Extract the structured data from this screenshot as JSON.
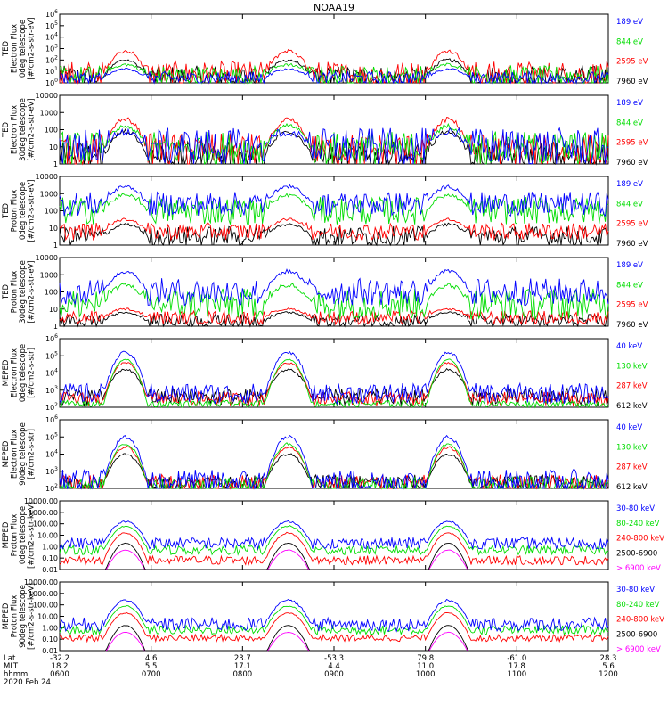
{
  "chart_data": {
    "type": "line",
    "title": "NOAA19",
    "date_label": "2020 Feb 24",
    "footer_axis": {
      "row_labels": [
        "Lat",
        "MLT",
        "hhmm"
      ],
      "columns": [
        {
          "lat": "-32.2",
          "mlt": "18.2",
          "hhmm": "0600"
        },
        {
          "lat": "4.6",
          "mlt": "5.5",
          "hhmm": "0700"
        },
        {
          "lat": "23.7",
          "mlt": "17.1",
          "hhmm": "0800"
        },
        {
          "lat": "-53.3",
          "mlt": "4.4",
          "hhmm": "0900"
        },
        {
          "lat": "79.8",
          "mlt": "11.0",
          "hhmm": "1000"
        },
        {
          "lat": "-61.0",
          "mlt": "17.8",
          "hhmm": "1100"
        },
        {
          "lat": "28.3",
          "mlt": "5.6",
          "hhmm": "1200"
        }
      ]
    },
    "x_range_hours": [
      6,
      12
    ],
    "pass_profiles": [
      {
        "key": "a",
        "center": 6.72,
        "width": 0.15
      },
      {
        "key": "b",
        "center": 8.5,
        "width": 0.16
      },
      {
        "key": "c",
        "center": 10.25,
        "width": 0.15
      }
    ],
    "panels": [
      {
        "ylabel": [
          "TED",
          "Electron Flux",
          "0deg telescope",
          "[#/cm2-s-str-eV]"
        ],
        "scale": "log",
        "ymin": 1,
        "ymax": 1000000,
        "ticks": [
          "10^6",
          "10^5",
          "10^4",
          "10^3",
          "10^2",
          "10^1",
          "10^0"
        ],
        "series": [
          {
            "name": "7960 eV",
            "color": "#000000",
            "peak": 2.0,
            "base": 0.5,
            "noise": 1.0
          },
          {
            "name": "2595 eV",
            "color": "#ff0000",
            "peak": 2.8,
            "base": 0.7,
            "noise": 1.2
          },
          {
            "name": "844 eV",
            "color": "#00dd00",
            "peak": 1.6,
            "base": 0.6,
            "noise": 0.9
          },
          {
            "name": "189 eV",
            "color": "#0000ff",
            "peak": 1.2,
            "base": 0.4,
            "noise": 0.6
          }
        ]
      },
      {
        "ylabel": [
          "TED",
          "Electron Flux",
          "30deg telescope",
          "[#/cm2-s-str-eV]"
        ],
        "scale": "log",
        "ymin": 1,
        "ymax": 10000,
        "ticks": [
          "10000",
          "1000",
          "100",
          "10",
          "1"
        ],
        "series": [
          {
            "name": "7960 eV",
            "color": "#000000",
            "peak": 1.9,
            "base": 0.4,
            "noise": 0.9
          },
          {
            "name": "2595 eV",
            "color": "#ff0000",
            "peak": 2.6,
            "base": 0.8,
            "noise": 1.0
          },
          {
            "name": "844 eV",
            "color": "#00dd00",
            "peak": 2.2,
            "base": 0.9,
            "noise": 1.0
          },
          {
            "name": "189 eV",
            "color": "#0000ff",
            "peak": 1.8,
            "base": 1.0,
            "noise": 1.1
          }
        ]
      },
      {
        "ylabel": [
          "TED",
          "Proton Flux",
          "0deg telescope",
          "[#/cm2-s-str-eV]"
        ],
        "scale": "log",
        "ymin": 1,
        "ymax": 10000,
        "ticks": [
          "10000",
          "1000",
          "100",
          "10",
          "1"
        ],
        "series": [
          {
            "name": "7960 eV",
            "color": "#000000",
            "peak": 1.2,
            "base": 0.5,
            "noise": 0.6
          },
          {
            "name": "2595 eV",
            "color": "#ff0000",
            "peak": 1.5,
            "base": 0.8,
            "noise": 0.5
          },
          {
            "name": "844 eV",
            "color": "#00dd00",
            "peak": 2.9,
            "base": 2.0,
            "noise": 0.8
          },
          {
            "name": "189 eV",
            "color": "#0000ff",
            "peak": 3.4,
            "base": 2.4,
            "noise": 0.7
          }
        ]
      },
      {
        "ylabel": [
          "TED",
          "Proton Flux",
          "30deg telescope",
          "[#/cm2-s-str-eV]"
        ],
        "scale": "log",
        "ymin": 1,
        "ymax": 10000,
        "ticks": [
          "10000",
          "1000",
          "100",
          "10",
          "1"
        ],
        "series": [
          {
            "name": "7960 eV",
            "color": "#000000",
            "peak": 0.8,
            "base": 0.3,
            "noise": 0.4
          },
          {
            "name": "2595 eV",
            "color": "#ff0000",
            "peak": 1.0,
            "base": 0.5,
            "noise": 0.4
          },
          {
            "name": "844 eV",
            "color": "#00dd00",
            "peak": 2.4,
            "base": 1.3,
            "noise": 0.9
          },
          {
            "name": "189 eV",
            "color": "#0000ff",
            "peak": 3.2,
            "base": 2.0,
            "noise": 0.8
          }
        ]
      },
      {
        "ylabel": [
          "MEPED",
          "Electron Flux",
          "0deg telescope",
          "[#/cm2-s-str]"
        ],
        "scale": "log",
        "ymin": 100,
        "ymax": 1000000,
        "ticks": [
          "10^6",
          "10^5",
          "10^4",
          "10^3",
          "10^2"
        ],
        "series": [
          {
            "name": "612 keV",
            "color": "#000000",
            "peak": 4.2,
            "base": 2.6,
            "noise": 0.5
          },
          {
            "name": "287 keV",
            "color": "#ff0000",
            "peak": 4.6,
            "base": 2.5,
            "noise": 0.4
          },
          {
            "name": "130 keV",
            "color": "#00dd00",
            "peak": 4.8,
            "base": 2.2,
            "noise": 0.2
          },
          {
            "name": "40 keV",
            "color": "#0000ff",
            "peak": 5.2,
            "base": 2.8,
            "noise": 0.6
          }
        ]
      },
      {
        "ylabel": [
          "MEPED",
          "Electron Flux",
          "90deg telescope",
          "[#/cm2-s-str]"
        ],
        "scale": "log",
        "ymin": 100,
        "ymax": 1000000,
        "ticks": [
          "10^6",
          "10^5",
          "10^4",
          "10^3",
          "10^2"
        ],
        "series": [
          {
            "name": "612 keV",
            "color": "#000000",
            "peak": 4.0,
            "base": 2.3,
            "noise": 0.5
          },
          {
            "name": "287 keV",
            "color": "#ff0000",
            "peak": 4.4,
            "base": 2.3,
            "noise": 0.5
          },
          {
            "name": "130 keV",
            "color": "#00dd00",
            "peak": 4.6,
            "base": 2.2,
            "noise": 0.5
          },
          {
            "name": "40 keV",
            "color": "#0000ff",
            "peak": 5.0,
            "base": 2.4,
            "noise": 0.7
          }
        ]
      },
      {
        "ylabel": [
          "MEPED",
          "Proton Flux",
          "0deg telescope",
          "[#/cm2-s-str-keV]"
        ],
        "scale": "log",
        "ymin": 0.01,
        "ymax": 10000,
        "ticks": [
          "10000.00",
          "1000.00",
          "100.00",
          "10.00",
          "1.00",
          "0.10",
          "0.01"
        ],
        "series": [
          {
            "name": "> 6900 keV",
            "color": "#ff00ff",
            "peak": -0.3,
            "base": -2.5,
            "noise": 0.1
          },
          {
            "name": "2500-6900",
            "color": "#000000",
            "peak": 0.3,
            "base": -2.5,
            "noise": 0.1
          },
          {
            "name": "240-800 keV",
            "color": "#ff0000",
            "peak": 1.2,
            "base": -1.2,
            "noise": 0.4
          },
          {
            "name": "80-240 keV",
            "color": "#00dd00",
            "peak": 1.8,
            "base": -0.3,
            "noise": 0.4
          },
          {
            "name": "30-80 keV",
            "color": "#0000ff",
            "peak": 2.2,
            "base": 0.3,
            "noise": 0.5
          }
        ]
      },
      {
        "ylabel": [
          "MEPED",
          "Proton Flux",
          "90deg telescope",
          "[#/cm2-s-str-keV]"
        ],
        "scale": "log",
        "ymin": 0.01,
        "ymax": 10000,
        "ticks": [
          "10000.00",
          "1000.00",
          "100.00",
          "10.00",
          "1.00",
          "0.10",
          "0.01"
        ],
        "series": [
          {
            "name": "> 6900 keV",
            "color": "#ff00ff",
            "peak": -0.4,
            "base": -2.5,
            "noise": 0.1
          },
          {
            "name": "2500-6900",
            "color": "#000000",
            "peak": 0.2,
            "base": -2.5,
            "noise": 0.1
          },
          {
            "name": "240-800 keV",
            "color": "#ff0000",
            "peak": 1.3,
            "base": -0.9,
            "noise": 0.3
          },
          {
            "name": "80-240 keV",
            "color": "#00dd00",
            "peak": 1.9,
            "base": -0.2,
            "noise": 0.4
          },
          {
            "name": "30-80 keV",
            "color": "#0000ff",
            "peak": 2.4,
            "base": 0.3,
            "noise": 0.6
          }
        ]
      }
    ]
  }
}
